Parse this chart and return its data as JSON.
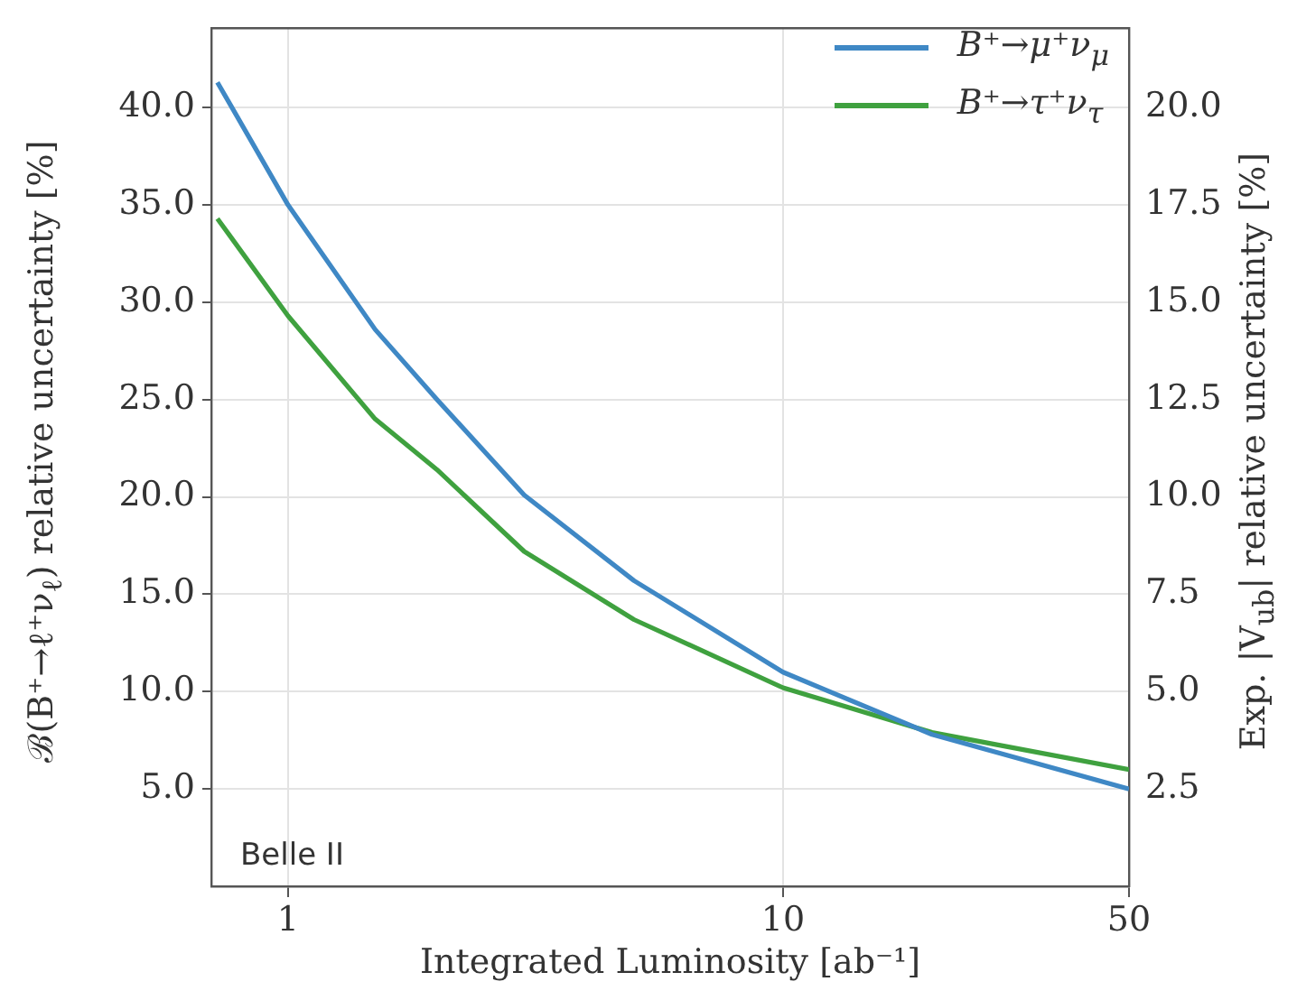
{
  "chart_data": {
    "type": "line",
    "xlabel": "Integrated Luminosity [ab⁻¹]",
    "ylabel": "ℬ(B⁺→ℓ⁺ν$_{ℓ}$) relative uncertainty [%]",
    "y2label": "Exp. |V$_{ub}$| relative uncertainty [%]",
    "annotations": [
      "Belle II"
    ],
    "x": [
      0.72,
      1,
      1.5,
      2,
      3,
      5,
      10,
      20,
      50
    ],
    "series": [
      {
        "name": "B⁺→μ⁺ν$_{μ}$",
        "color": "#3f88c5",
        "values": [
          41.3,
          35.0,
          28.6,
          25.0,
          20.1,
          15.7,
          11.0,
          7.8,
          5.0
        ]
      },
      {
        "name": "B⁺→τ⁺ν$_{τ}$",
        "color": "#3fa13f",
        "values": [
          34.3,
          29.3,
          24.0,
          21.4,
          17.2,
          13.7,
          10.2,
          7.9,
          6.0
        ]
      }
    ],
    "log": "x",
    "xlim": [
      0.72,
      50
    ],
    "xticks": [
      1,
      10,
      50
    ],
    "ylim": [
      0,
      44.1
    ],
    "yticks": [
      {
        "value": 5,
        "label": "5.0"
      },
      {
        "value": 10,
        "label": "10.0"
      },
      {
        "value": 15,
        "label": "15.0"
      },
      {
        "value": 20,
        "label": "20.0"
      },
      {
        "value": 25,
        "label": "25.0"
      },
      {
        "value": 30,
        "label": "30.0"
      },
      {
        "value": 35,
        "label": "35.0"
      },
      {
        "value": 40,
        "label": "40.0"
      }
    ],
    "y2lim": [
      0,
      22.05
    ],
    "y2ticks": [
      2.5,
      {
        "value": 5,
        "label": "5.0"
      },
      7.5,
      {
        "value": 10,
        "label": "10.0"
      },
      12.5,
      {
        "value": 15,
        "label": "15.0"
      },
      17.5,
      {
        "value": 20,
        "label": "20.0"
      }
    ],
    "grid": true,
    "legend": "top right",
    "marker": "none",
    "line_style": "solid"
  }
}
